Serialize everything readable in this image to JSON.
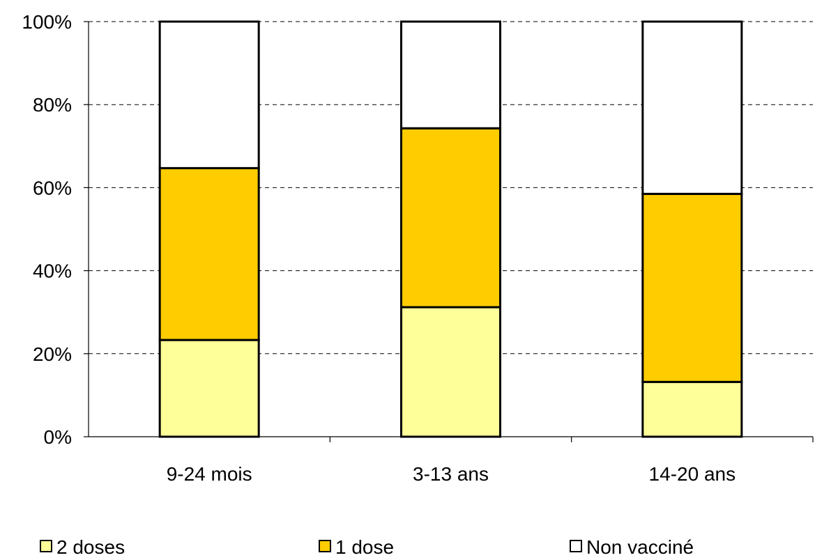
{
  "chart_data": {
    "type": "bar",
    "stacked": true,
    "categories": [
      "9-24 mois",
      "3-13 ans",
      "14-20 ans"
    ],
    "series": [
      {
        "name": "2 doses",
        "color": "#FFFF99",
        "values": [
          23.3,
          31.2,
          13.2
        ]
      },
      {
        "name": "1 dose",
        "color": "#FFCC00",
        "values": [
          41.4,
          43.1,
          45.3
        ]
      },
      {
        "name": "Non vacciné",
        "color": "#FFFFFF",
        "values": [
          35.3,
          25.7,
          41.5
        ]
      }
    ],
    "ylim": [
      0,
      100
    ],
    "yticks": [
      0,
      20,
      40,
      60,
      80,
      100
    ],
    "ytick_labels": [
      "0%",
      "20%",
      "40%",
      "60%",
      "80%",
      "100%"
    ],
    "grid": "horizontal dashed",
    "legend_position": "bottom"
  }
}
